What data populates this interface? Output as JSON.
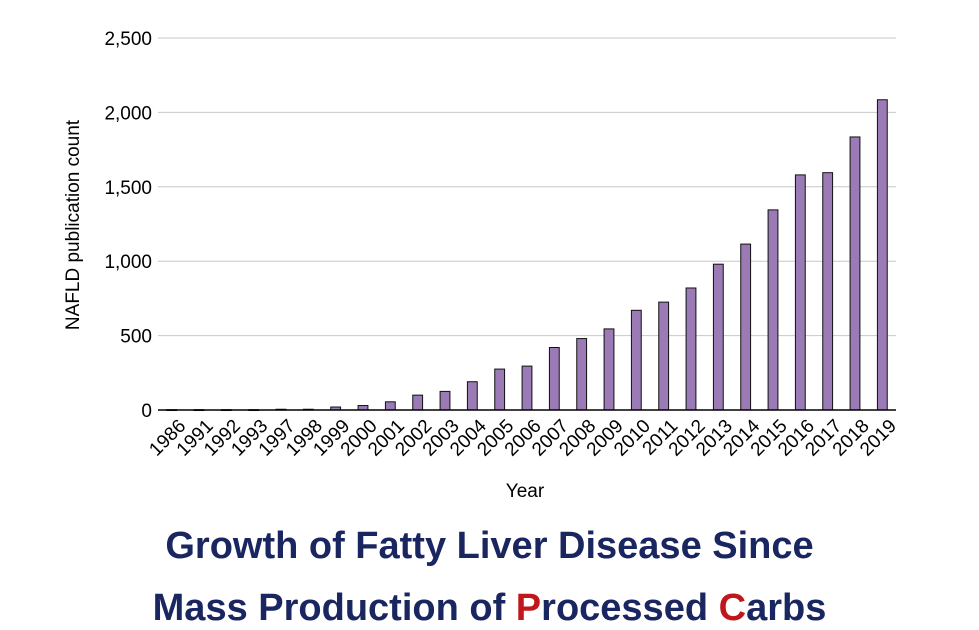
{
  "chart_data": {
    "type": "bar",
    "xlabel": "Year",
    "ylabel": "NAFLD publication count",
    "ylim": [
      0,
      2500
    ],
    "yticks": [
      "0",
      "500",
      "1,000",
      "1,500",
      "2,000",
      "2,500"
    ],
    "grid": true,
    "bar_color": "#9a7bb5",
    "categories": [
      "1986",
      "1991",
      "1992",
      "1993",
      "1997",
      "1998",
      "1999",
      "2000",
      "2001",
      "2002",
      "2003",
      "2004",
      "2005",
      "2006",
      "2007",
      "2008",
      "2009",
      "2010",
      "2011",
      "2012",
      "2013",
      "2014",
      "2015",
      "2016",
      "2017",
      "2018",
      "2019"
    ],
    "values": [
      2,
      2,
      2,
      2,
      5,
      5,
      20,
      30,
      55,
      100,
      125,
      190,
      275,
      295,
      420,
      480,
      545,
      670,
      725,
      820,
      980,
      1115,
      1345,
      1580,
      1595,
      1835,
      2085
    ]
  },
  "caption": {
    "line1": "Growth of Fatty Liver Disease Since",
    "line2_a": "Mass Production of ",
    "line2_p": "P",
    "line2_b": "rocessed ",
    "line2_c": "C",
    "line2_d": "arbs",
    "accent_color": "#c0161c",
    "text_color": "#1a2660"
  }
}
